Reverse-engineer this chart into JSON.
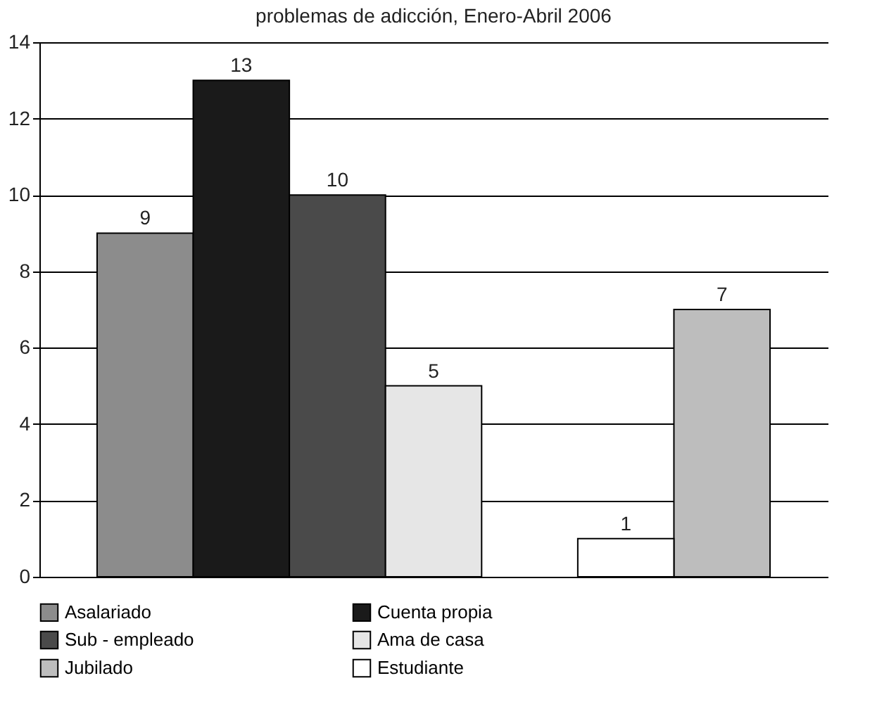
{
  "chart_data": {
    "type": "bar",
    "title": "problemas de adicción, Enero-Abril 2006",
    "categories": [
      null,
      null,
      null,
      null,
      null,
      null,
      null
    ],
    "series": [
      {
        "name": "Asalariado",
        "color": "#8c8c8c",
        "values": [
          9,
          null,
          null,
          null,
          null,
          null,
          null
        ]
      },
      {
        "name": "Cuenta propia",
        "color": "#1a1a1a",
        "values": [
          null,
          13,
          null,
          null,
          null,
          null,
          null
        ]
      },
      {
        "name": "Sub - empleado",
        "color": "#4a4a4a",
        "values": [
          null,
          null,
          10,
          null,
          null,
          null,
          null
        ]
      },
      {
        "name": "Ama de casa",
        "color": "#e6e6e6",
        "values": [
          null,
          null,
          null,
          5,
          null,
          null,
          null
        ]
      },
      {
        "name": "Jubilado",
        "color": "#bdbdbd",
        "values": [
          null,
          null,
          null,
          null,
          null,
          null,
          7
        ]
      },
      {
        "name": "Estudiante",
        "color": "#ffffff",
        "values": [
          null,
          null,
          null,
          null,
          null,
          1,
          null
        ]
      }
    ],
    "ylim": [
      0,
      14
    ],
    "yticks": [
      0,
      2,
      4,
      6,
      8,
      10,
      12,
      14
    ],
    "grid": "y",
    "legend": "bottom",
    "data_labels": true
  }
}
